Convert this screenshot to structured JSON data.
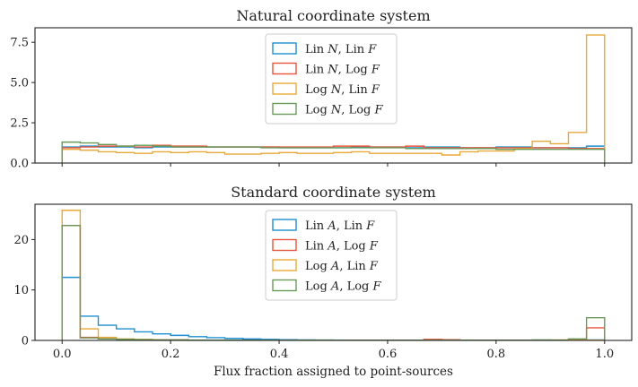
{
  "chart_data": [
    {
      "type": "histogram",
      "title": "Natural coordinate system",
      "xlabel": "",
      "ylabel": "",
      "xlim": [
        -0.05,
        1.05
      ],
      "ylim": [
        0,
        8.4
      ],
      "xticks": [
        0.0,
        0.2,
        0.4,
        0.6,
        0.8,
        1.0
      ],
      "xtick_labels_shown": false,
      "yticks": [
        0.0,
        2.5,
        5.0,
        7.5
      ],
      "ytick_labels": [
        "0.0",
        "2.5",
        "5.0",
        "7.5"
      ],
      "legend_position": "top-center",
      "bins": 30,
      "bin_range": [
        0,
        1
      ],
      "series": [
        {
          "name_pre": "Lin ",
          "name_var1": "N",
          "name_mid": ", Lin ",
          "name_var2": "F",
          "color": "#1f8fd0",
          "values": [
            1.0,
            1.05,
            1.0,
            1.0,
            0.95,
            1.0,
            1.0,
            1.0,
            1.0,
            1.0,
            1.0,
            1.0,
            0.95,
            0.95,
            0.95,
            0.95,
            1.0,
            1.0,
            1.0,
            0.95,
            1.0,
            1.0,
            0.95,
            0.95,
            1.0,
            1.0,
            0.95,
            0.95,
            0.95,
            1.05
          ]
        },
        {
          "name_pre": "Lin ",
          "name_var1": "N",
          "name_mid": ", Log ",
          "name_var2": "F",
          "color": "#e8553a",
          "values": [
            0.95,
            1.0,
            1.05,
            1.05,
            1.0,
            1.1,
            1.05,
            1.05,
            1.0,
            1.0,
            1.0,
            1.0,
            1.0,
            1.0,
            1.0,
            1.05,
            1.05,
            1.0,
            1.0,
            1.05,
            0.95,
            0.95,
            0.95,
            0.95,
            0.95,
            0.95,
            0.95,
            0.95,
            0.9,
            0.9
          ]
        },
        {
          "name_pre": "Log ",
          "name_var1": "N",
          "name_mid": ", Lin ",
          "name_var2": "F",
          "color": "#e8a838",
          "values": [
            0.85,
            0.8,
            0.7,
            0.65,
            0.6,
            0.7,
            0.65,
            0.7,
            0.65,
            0.55,
            0.55,
            0.6,
            0.65,
            0.6,
            0.6,
            0.65,
            0.7,
            0.6,
            0.6,
            0.6,
            0.6,
            0.5,
            0.7,
            0.75,
            0.75,
            0.9,
            1.35,
            1.2,
            1.9,
            7.95
          ]
        },
        {
          "name_pre": "Log ",
          "name_var1": "N",
          "name_mid": ", Log ",
          "name_var2": "F",
          "color": "#6a9a58",
          "values": [
            1.3,
            1.25,
            1.15,
            1.05,
            1.1,
            1.05,
            1.0,
            1.0,
            1.0,
            1.0,
            1.0,
            0.95,
            0.95,
            0.95,
            0.95,
            0.95,
            0.95,
            0.95,
            0.95,
            0.9,
            0.9,
            0.9,
            0.9,
            0.9,
            0.85,
            0.85,
            0.85,
            0.85,
            0.85,
            0.85
          ]
        }
      ]
    },
    {
      "type": "histogram",
      "title": "Standard coordinate system",
      "xlabel": "Flux fraction assigned to point-sources",
      "ylabel": "",
      "xlim": [
        -0.05,
        1.05
      ],
      "ylim": [
        0,
        27
      ],
      "xticks": [
        0.0,
        0.2,
        0.4,
        0.6,
        0.8,
        1.0
      ],
      "xtick_labels": [
        "0.0",
        "0.2",
        "0.4",
        "0.6",
        "0.8",
        "1.0"
      ],
      "yticks": [
        0,
        10,
        20
      ],
      "ytick_labels": [
        "0",
        "10",
        "20"
      ],
      "legend_position": "top-center",
      "bins": 30,
      "bin_range": [
        0,
        1
      ],
      "series": [
        {
          "name_pre": "Lin ",
          "name_var1": "A",
          "name_mid": ", Lin ",
          "name_var2": "F",
          "color": "#1f8fd0",
          "values": [
            12.5,
            4.8,
            3.0,
            2.3,
            1.7,
            1.3,
            1.0,
            0.75,
            0.55,
            0.4,
            0.3,
            0.2,
            0.15,
            0.1,
            0.08,
            0.06,
            0.05,
            0.05,
            0.04,
            0.04,
            0.03,
            0.03,
            0.03,
            0.03,
            0.03,
            0.03,
            0.03,
            0.03,
            0.03,
            0.1
          ]
        },
        {
          "name_pre": "Lin ",
          "name_var1": "A",
          "name_mid": ", Log ",
          "name_var2": "F",
          "color": "#e8553a",
          "values": [
            22.8,
            0.6,
            0.3,
            0.2,
            0.15,
            0.1,
            0.1,
            0.05,
            0.05,
            0.05,
            0.05,
            0.05,
            0.05,
            0.05,
            0.05,
            0.05,
            0.05,
            0.05,
            0.05,
            0.05,
            0.2,
            0.15,
            0.05,
            0.05,
            0.05,
            0.05,
            0.05,
            0.05,
            0.1,
            2.5
          ]
        },
        {
          "name_pre": "Log ",
          "name_var1": "A",
          "name_mid": ", Lin ",
          "name_var2": "F",
          "color": "#e8a838",
          "values": [
            25.8,
            2.3,
            0.6,
            0.3,
            0.2,
            0.1,
            0.1,
            0.05,
            0.05,
            0.05,
            0.05,
            0.05,
            0.05,
            0.05,
            0.05,
            0.05,
            0.05,
            0.05,
            0.05,
            0.05,
            0.05,
            0.05,
            0.05,
            0.05,
            0.05,
            0.05,
            0.05,
            0.1,
            0.2,
            0.05
          ]
        },
        {
          "name_pre": "Log ",
          "name_var1": "A",
          "name_mid": ", Log ",
          "name_var2": "F",
          "color": "#6a9a58",
          "values": [
            22.8,
            0.5,
            0.3,
            0.2,
            0.15,
            0.1,
            0.1,
            0.05,
            0.05,
            0.05,
            0.05,
            0.05,
            0.05,
            0.05,
            0.05,
            0.05,
            0.05,
            0.05,
            0.05,
            0.05,
            0.05,
            0.05,
            0.05,
            0.05,
            0.05,
            0.05,
            0.1,
            0.05,
            0.3,
            4.5
          ]
        }
      ]
    }
  ]
}
